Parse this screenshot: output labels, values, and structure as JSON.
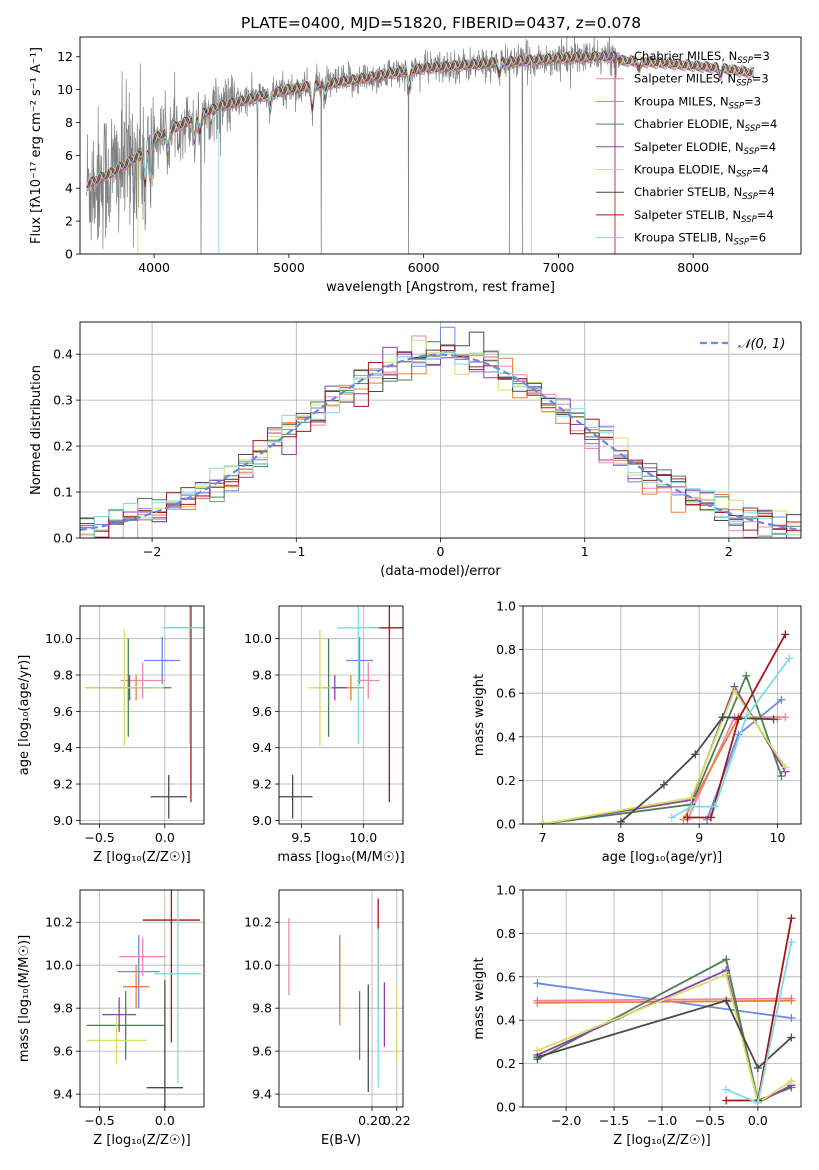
{
  "figure": {
    "title": "PLATE=0400, MJD=51820, FIBERID=0437, z=0.078"
  },
  "colors": {
    "Chabrier MILES": "#6a88e6",
    "Salpeter MILES": "#ef86ad",
    "Kroupa MILES": "#ef7f33",
    "Chabrier ELODIE": "#4e7f56",
    "Salpeter ELODIE": "#8f41aa",
    "Kroupa ELODIE": "#d5e15d",
    "Chabrier STELIB": "#4a4a4a",
    "Salpeter STELIB": "#a4171c",
    "Kroupa STELIB": "#7fdce2",
    "data": "#808080"
  },
  "chart_data": [
    {
      "id": "spectrum",
      "type": "line",
      "xlabel": "wavelength [Angstrom, rest frame]",
      "ylabel": "Flux [fλ10⁻¹⁷ erg cm⁻² s⁻¹ A⁻¹]",
      "xlim": [
        3450,
        8800
      ],
      "ylim": [
        0,
        13.2
      ],
      "xticks": [
        "4000",
        "5000",
        "6000",
        "7000",
        "8000"
      ],
      "yticks": [
        "0",
        "2",
        "4",
        "6",
        "8",
        "10",
        "12"
      ],
      "legend_position": "upper right",
      "legend": [
        {
          "label": "Chabrier MILES, N",
          "sub": "SSP",
          "suffix": "=3",
          "model": "Chabrier MILES"
        },
        {
          "label": "Salpeter MILES, N",
          "sub": "SSP",
          "suffix": "=3",
          "model": "Salpeter MILES"
        },
        {
          "label": "Kroupa MILES, N",
          "sub": "SSP",
          "suffix": "=3",
          "model": "Kroupa MILES"
        },
        {
          "label": "Chabrier ELODIE, N",
          "sub": "SSP",
          "suffix": "=4",
          "model": "Chabrier ELODIE"
        },
        {
          "label": "Salpeter ELODIE, N",
          "sub": "SSP",
          "suffix": "=4",
          "model": "Salpeter ELODIE"
        },
        {
          "label": "Kroupa ELODIE, N",
          "sub": "SSP",
          "suffix": "=4",
          "model": "Kroupa ELODIE"
        },
        {
          "label": "Chabrier STELIB, N",
          "sub": "SSP",
          "suffix": "=4",
          "model": "Chabrier STELIB"
        },
        {
          "label": "Salpeter STELIB, N",
          "sub": "SSP",
          "suffix": "=4",
          "model": "Salpeter STELIB"
        },
        {
          "label": "Kroupa STELIB, N",
          "sub": "SSP",
          "suffix": "=6",
          "model": "Kroupa STELIB"
        }
      ],
      "continuum": {
        "wavelength": [
          3500,
          3700,
          3900,
          4000,
          4300,
          4500,
          5000,
          5500,
          6000,
          6500,
          7000,
          7300,
          7450
        ],
        "flux": [
          4.2,
          5.0,
          6.0,
          7.0,
          8.3,
          9.0,
          10.0,
          10.6,
          11.3,
          11.6,
          11.9,
          12.0,
          12.0
        ]
      },
      "models_continuum": {
        "wavelength": [
          7400,
          7800,
          8200,
          8450
        ],
        "flux": [
          11.8,
          11.6,
          11.3,
          11.0
        ]
      },
      "data_range": [
        3500,
        7450
      ],
      "model_range": [
        3500,
        8450
      ]
    },
    {
      "id": "residuals",
      "type": "histogram",
      "xlabel": "(data-model)/error",
      "ylabel": "Normed distribution",
      "xlim": [
        -2.5,
        2.5
      ],
      "ylim": [
        0,
        0.47
      ],
      "xticks": [
        "−2",
        "−1",
        "0",
        "1",
        "2"
      ],
      "yticks": [
        "0.0",
        "0.1",
        "0.2",
        "0.3",
        "0.4"
      ],
      "bin_width": 0.1,
      "legend": "𝒩(0, 1)",
      "legend_position": "upper right",
      "reference": {
        "type": "gaussian",
        "mean": 0,
        "sigma": 1,
        "style": "dashed",
        "color": "#6a88e6"
      }
    },
    {
      "id": "age-vs-Z",
      "type": "errorbar",
      "xlabel": "Z [log₁₀(Z/Z☉)]",
      "ylabel": "age  [log₁₀(age/yr)]",
      "xlim": [
        -0.65,
        0.3
      ],
      "ylim": [
        8.98,
        10.18
      ],
      "xticks": [
        "−0.5",
        "0.0"
      ],
      "yticks": [
        "9.0",
        "9.2",
        "9.4",
        "9.6",
        "9.8",
        "10.0"
      ],
      "points": [
        {
          "model": "Chabrier MILES",
          "x": -0.02,
          "xerr": 0.14,
          "y": 9.88,
          "yerr": 0.13
        },
        {
          "model": "Salpeter MILES",
          "x": -0.17,
          "xerr": 0.17,
          "y": 9.77,
          "yerr": 0.1
        },
        {
          "model": "Kroupa MILES",
          "x": -0.22,
          "xerr": 0.14,
          "y": 9.73,
          "yerr": 0.07
        },
        {
          "model": "Chabrier ELODIE",
          "x": -0.28,
          "xerr": 0.33,
          "y": 9.73,
          "yerr": 0.27
        },
        {
          "model": "Salpeter ELODIE",
          "x": -0.27,
          "xerr": 0.15,
          "y": 9.73,
          "yerr": 0.07
        },
        {
          "model": "Kroupa ELODIE",
          "x": -0.31,
          "xerr": 0.3,
          "y": 9.73,
          "yerr": 0.32
        },
        {
          "model": "Chabrier STELIB",
          "x": 0.03,
          "xerr": 0.14,
          "y": 9.13,
          "yerr": 0.12
        },
        {
          "model": "Salpeter STELIB",
          "x": 0.2,
          "xerr": 0.2,
          "y": 10.06,
          "yerr": 0.96
        },
        {
          "model": "Kroupa STELIB",
          "x": 0.19,
          "xerr": 0.21,
          "y": 10.06,
          "yerr": 0.64
        }
      ]
    },
    {
      "id": "age-vs-mass",
      "type": "errorbar",
      "xlabel": "mass [log₁₀(M/M☉)]",
      "ylabel": "",
      "xlim": [
        9.32,
        10.32
      ],
      "ylim": [
        8.98,
        10.18
      ],
      "xticks": [
        "9.5",
        "10.0"
      ],
      "yticks": [
        "9.0",
        "9.2",
        "9.4",
        "9.6",
        "9.8",
        "10.0"
      ],
      "points": [
        {
          "model": "Chabrier MILES",
          "x": 9.97,
          "xerr": 0.11,
          "y": 9.88,
          "yerr": 0.13
        },
        {
          "model": "Salpeter MILES",
          "x": 10.04,
          "xerr": 0.09,
          "y": 9.77,
          "yerr": 0.1
        },
        {
          "model": "Kroupa MILES",
          "x": 9.9,
          "xerr": 0.1,
          "y": 9.73,
          "yerr": 0.07
        },
        {
          "model": "Chabrier ELODIE",
          "x": 9.72,
          "xerr": 0.1,
          "y": 9.73,
          "yerr": 0.27
        },
        {
          "model": "Salpeter ELODIE",
          "x": 9.77,
          "xerr": 0.1,
          "y": 9.73,
          "yerr": 0.07
        },
        {
          "model": "Kroupa ELODIE",
          "x": 9.65,
          "xerr": 0.1,
          "y": 9.73,
          "yerr": 0.32
        },
        {
          "model": "Chabrier STELIB",
          "x": 9.43,
          "xerr": 0.16,
          "y": 9.13,
          "yerr": 0.12
        },
        {
          "model": "Salpeter STELIB",
          "x": 10.21,
          "xerr": 0.17,
          "y": 10.06,
          "yerr": 0.96
        },
        {
          "model": "Kroupa STELIB",
          "x": 9.96,
          "xerr": 0.17,
          "y": 10.06,
          "yerr": 0.64
        }
      ]
    },
    {
      "id": "weight-vs-age",
      "type": "line",
      "xlabel": "age  [log₁₀(age/yr)]",
      "ylabel": "mass weight",
      "xlim": [
        6.75,
        10.3
      ],
      "ylim": [
        0,
        1.0
      ],
      "xticks": [
        "7",
        "8",
        "9",
        "10"
      ],
      "yticks": [
        "0.0",
        "0.2",
        "0.4",
        "0.6",
        "0.8",
        "1.0"
      ],
      "series": [
        {
          "model": "Chabrier MILES",
          "x": [
            9.1,
            9.5,
            10.05
          ],
          "y": [
            0.02,
            0.41,
            0.57
          ]
        },
        {
          "model": "Salpeter MILES",
          "x": [
            8.85,
            9.45,
            10.1
          ],
          "y": [
            0.02,
            0.49,
            0.49
          ]
        },
        {
          "model": "Kroupa MILES",
          "x": [
            8.8,
            9.5,
            10.0
          ],
          "y": [
            0.02,
            0.49,
            0.48
          ]
        },
        {
          "model": "Chabrier ELODIE",
          "x": [
            7.0,
            8.9,
            9.6,
            10.05
          ],
          "y": [
            0.0,
            0.09,
            0.68,
            0.22
          ]
        },
        {
          "model": "Salpeter ELODIE",
          "x": [
            7.0,
            8.9,
            9.45,
            10.1
          ],
          "y": [
            0.0,
            0.11,
            0.63,
            0.24
          ]
        },
        {
          "model": "Kroupa ELODIE",
          "x": [
            7.0,
            8.9,
            9.45,
            10.1
          ],
          "y": [
            0.0,
            0.12,
            0.61,
            0.26
          ]
        },
        {
          "model": "Chabrier STELIB",
          "x": [
            8.0,
            8.55,
            8.95,
            9.3,
            9.95
          ],
          "y": [
            0.01,
            0.18,
            0.32,
            0.49,
            0.48
          ]
        },
        {
          "model": "Salpeter STELIB",
          "x": [
            8.85,
            9.15,
            9.5,
            10.1
          ],
          "y": [
            0.03,
            0.03,
            0.48,
            0.87
          ]
        },
        {
          "model": "Kroupa STELIB",
          "x": [
            8.65,
            8.9,
            9.2,
            9.6,
            10.15
          ],
          "y": [
            0.03,
            0.08,
            0.08,
            0.49,
            0.76
          ]
        }
      ]
    },
    {
      "id": "mass-vs-Z",
      "type": "errorbar",
      "xlabel": "Z [log₁₀(Z/Z☉)]",
      "ylabel": "mass [log₁₀(M/M☉)]",
      "xlim": [
        -0.65,
        0.3
      ],
      "ylim": [
        9.34,
        10.35
      ],
      "xticks": [
        "−0.5",
        "0.0"
      ],
      "yticks": [
        "9.4",
        "9.6",
        "9.8",
        "10.0",
        "10.2"
      ],
      "points": [
        {
          "model": "Chabrier MILES",
          "x": -0.2,
          "xerr": 0.16,
          "y": 9.97,
          "yerr": 0.17
        },
        {
          "model": "Salpeter MILES",
          "x": -0.17,
          "xerr": 0.18,
          "y": 10.04,
          "yerr": 0.09
        },
        {
          "model": "Kroupa MILES",
          "x": -0.22,
          "xerr": 0.1,
          "y": 9.9,
          "yerr": 0.1
        },
        {
          "model": "Chabrier ELODIE",
          "x": -0.3,
          "xerr": 0.3,
          "y": 9.72,
          "yerr": 0.16
        },
        {
          "model": "Salpeter ELODIE",
          "x": -0.35,
          "xerr": 0.13,
          "y": 9.77,
          "yerr": 0.08
        },
        {
          "model": "Kroupa ELODIE",
          "x": -0.37,
          "xerr": 0.23,
          "y": 9.65,
          "yerr": 0.11
        },
        {
          "model": "Chabrier STELIB",
          "x": 0.0,
          "xerr": 0.14,
          "y": 9.43,
          "yerr": 0.5
        },
        {
          "model": "Salpeter STELIB",
          "x": 0.05,
          "xerr": 0.22,
          "y": 10.21,
          "yerr": 0.57
        },
        {
          "model": "Kroupa STELIB",
          "x": 0.1,
          "xerr": 0.18,
          "y": 9.96,
          "yerr": 0.51
        }
      ]
    },
    {
      "id": "mass-vs-ebv",
      "type": "errorbar",
      "xlabel": "E(B-V)",
      "ylabel": "",
      "xlim": [
        0.125,
        0.225
      ],
      "ylim": [
        9.34,
        10.35
      ],
      "xticks": [
        "0.20",
        "0.22"
      ],
      "yticks": [
        "9.4",
        "9.6",
        "9.8",
        "10.0",
        "10.2"
      ],
      "points": [
        {
          "model": "Chabrier MILES",
          "x": 0.174,
          "y": 9.97,
          "yerr": 0.17
        },
        {
          "model": "Salpeter MILES",
          "x": 0.133,
          "y": 10.04,
          "yerr": 0.18
        },
        {
          "model": "Kroupa MILES",
          "x": 0.174,
          "y": 9.91,
          "yerr": 0.19
        },
        {
          "model": "Chabrier ELODIE",
          "x": 0.19,
          "y": 9.72,
          "yerr": 0.16
        },
        {
          "model": "Salpeter ELODIE",
          "x": 0.21,
          "y": 9.77,
          "yerr": 0.15
        },
        {
          "model": "Kroupa ELODIE",
          "x": 0.22,
          "y": 9.72,
          "yerr": 0.18
        },
        {
          "model": "Chabrier STELIB",
          "x": 0.197,
          "y": 9.66,
          "yerr": 0.25
        },
        {
          "model": "Salpeter STELIB",
          "x": 0.205,
          "y": 10.05,
          "yerr": 0.26
        },
        {
          "model": "Kroupa STELIB",
          "x": 0.205,
          "y": 9.8,
          "yerr": 0.37
        }
      ]
    },
    {
      "id": "weight-vs-Z",
      "type": "line",
      "xlabel": "Z [log₁₀(Z/Z☉)]",
      "ylabel": "mass weight",
      "xlim": [
        -2.45,
        0.45
      ],
      "ylim": [
        0,
        1.0
      ],
      "xticks": [
        "−2.0",
        "−1.5",
        "−1.0",
        "−0.5",
        "0.0"
      ],
      "yticks": [
        "0.0",
        "0.2",
        "0.4",
        "0.6",
        "0.8",
        "1.0"
      ],
      "series": [
        {
          "model": "Chabrier MILES",
          "x": [
            -2.3,
            0.35
          ],
          "y": [
            0.57,
            0.41
          ]
        },
        {
          "model": "Salpeter MILES",
          "x": [
            -2.3,
            0.35
          ],
          "y": [
            0.49,
            0.5
          ]
        },
        {
          "model": "Kroupa MILES",
          "x": [
            -2.3,
            0.35
          ],
          "y": [
            0.48,
            0.49
          ]
        },
        {
          "model": "Chabrier ELODIE",
          "x": [
            -2.3,
            -0.33,
            0.0,
            0.35
          ],
          "y": [
            0.22,
            0.68,
            0.03,
            0.09
          ]
        },
        {
          "model": "Salpeter ELODIE",
          "x": [
            -2.3,
            -0.33,
            0.0,
            0.35
          ],
          "y": [
            0.24,
            0.63,
            0.02,
            0.1
          ]
        },
        {
          "model": "Kroupa ELODIE",
          "x": [
            -2.3,
            -0.33,
            0.0,
            0.35
          ],
          "y": [
            0.26,
            0.61,
            0.02,
            0.12
          ]
        },
        {
          "model": "Chabrier STELIB",
          "x": [
            -2.3,
            -0.33,
            0.0,
            0.35
          ],
          "y": [
            0.23,
            0.49,
            0.18,
            0.32
          ]
        },
        {
          "model": "Salpeter STELIB",
          "x": [
            -0.33,
            0.0,
            0.35
          ],
          "y": [
            0.03,
            0.03,
            0.87
          ]
        },
        {
          "model": "Kroupa STELIB",
          "x": [
            -0.33,
            0.0,
            0.35
          ],
          "y": [
            0.08,
            0.02,
            0.76
          ]
        }
      ]
    }
  ]
}
